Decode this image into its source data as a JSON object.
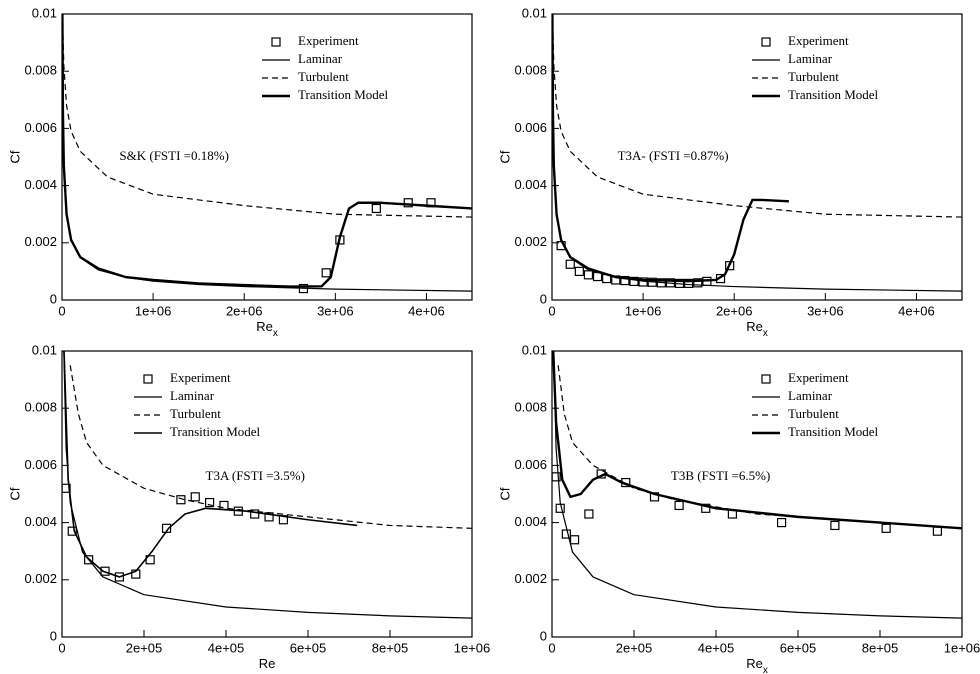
{
  "chart_data": [
    {
      "type": "line",
      "annotation": "S&K (FSTI =0.18%)",
      "xlabel": "Re",
      "xlabel_sub": "x",
      "ylabel": "Cf",
      "xlim": [
        0,
        4500000
      ],
      "ylim": [
        0,
        0.01
      ],
      "xticks": [
        0,
        {
          "value": 1000000,
          "label": "1e+06"
        },
        {
          "value": 2000000,
          "label": "2e+06"
        },
        {
          "value": 3000000,
          "label": "3e+06"
        },
        {
          "value": 4000000,
          "label": "4e+06"
        }
      ],
      "yticks": [
        0,
        0.002,
        0.004,
        0.006,
        0.008,
        0.01
      ],
      "legend": "upper right",
      "series": [
        {
          "name": "Experiment",
          "color": "#000000",
          "marker": "square",
          "x": [
            2650000,
            2900000,
            3050000,
            3450000,
            3800000,
            4050000
          ],
          "values": [
            0.0004,
            0.00095,
            0.0021,
            0.0032,
            0.0034,
            0.0034
          ]
        },
        {
          "name": "Laminar",
          "color": "#000000",
          "linewidth": 1.2,
          "x": [
            4400,
            10000,
            20000,
            50000,
            100000,
            200000,
            400000,
            700000,
            1000000,
            1500000,
            2000000,
            3000000,
            4500000
          ],
          "values": [
            0.01,
            0.0066,
            0.0047,
            0.00297,
            0.0021,
            0.00148,
            0.00105,
            0.00079,
            0.00066,
            0.00054,
            0.00047,
            0.00038,
            0.00031
          ]
        },
        {
          "name": "Turbulent",
          "color": "#000000",
          "linewidth": 1.2,
          "dash": true,
          "x": [
            3000,
            10000,
            20000,
            50000,
            100000,
            200000,
            500000,
            1000000,
            2000000,
            3000000,
            4500000
          ],
          "values": [
            0.01,
            0.0094,
            0.0082,
            0.0068,
            0.0059,
            0.0052,
            0.0043,
            0.0037,
            0.0033,
            0.003,
            0.0029
          ]
        },
        {
          "name": "Transition Model",
          "color": "#000000",
          "linewidth": 2.4,
          "x": [
            4400,
            10000,
            20000,
            50000,
            100000,
            200000,
            400000,
            700000,
            1000000,
            1500000,
            2000000,
            2500000,
            2850000,
            2950000,
            3050000,
            3150000,
            3250000,
            3500000,
            4000000,
            4500000
          ],
          "values": [
            0.01,
            0.0066,
            0.0047,
            0.003,
            0.0021,
            0.0015,
            0.0011,
            0.0008,
            0.0007,
            0.00058,
            0.00052,
            0.00047,
            0.00048,
            0.0008,
            0.0022,
            0.0032,
            0.0034,
            0.0034,
            0.0033,
            0.0032
          ]
        }
      ]
    },
    {
      "type": "line",
      "annotation": "T3A- (FSTI =0.87%)",
      "xlabel": "Re",
      "xlabel_sub": "x",
      "ylabel": "Cf",
      "xlim": [
        0,
        4500000
      ],
      "ylim": [
        0,
        0.01
      ],
      "xticks": [
        0,
        {
          "value": 1000000,
          "label": "1e+06"
        },
        {
          "value": 2000000,
          "label": "2e+06"
        },
        {
          "value": 3000000,
          "label": "3e+06"
        },
        {
          "value": 4000000,
          "label": "4e+06"
        }
      ],
      "yticks": [
        0,
        0.002,
        0.004,
        0.006,
        0.008,
        0.01
      ],
      "legend": "upper right",
      "series": [
        {
          "name": "Experiment",
          "color": "#000000",
          "marker": "square",
          "x": [
            100000,
            200000,
            300000,
            400000,
            500000,
            600000,
            700000,
            800000,
            900000,
            1000000,
            1100000,
            1200000,
            1300000,
            1400000,
            1500000,
            1600000,
            1700000,
            1850000,
            1950000
          ],
          "values": [
            0.0019,
            0.00125,
            0.001,
            0.00088,
            0.00082,
            0.00075,
            0.0007,
            0.00068,
            0.00065,
            0.00063,
            0.00062,
            0.0006,
            0.0006,
            0.00058,
            0.00058,
            0.0006,
            0.00065,
            0.00075,
            0.0012
          ]
        },
        {
          "name": "Laminar",
          "color": "#000000",
          "linewidth": 1.2,
          "x": [
            4400,
            10000,
            20000,
            50000,
            100000,
            200000,
            400000,
            700000,
            1000000,
            1500000,
            2000000,
            3000000,
            4500000
          ],
          "values": [
            0.01,
            0.0066,
            0.0047,
            0.00297,
            0.0021,
            0.00148,
            0.00105,
            0.00079,
            0.00066,
            0.00054,
            0.00047,
            0.00038,
            0.00031
          ]
        },
        {
          "name": "Turbulent",
          "color": "#000000",
          "linewidth": 1.2,
          "dash": true,
          "x": [
            3000,
            10000,
            20000,
            50000,
            100000,
            200000,
            500000,
            1000000,
            2000000,
            3000000,
            4500000
          ],
          "values": [
            0.01,
            0.0094,
            0.0082,
            0.0068,
            0.0059,
            0.0052,
            0.0043,
            0.0037,
            0.0033,
            0.003,
            0.0029
          ]
        },
        {
          "name": "Transition Model",
          "color": "#000000",
          "linewidth": 2.4,
          "x": [
            4400,
            10000,
            20000,
            50000,
            100000,
            200000,
            400000,
            700000,
            1000000,
            1500000,
            1800000,
            1900000,
            2000000,
            2100000,
            2200000,
            2300000,
            2600000
          ],
          "values": [
            0.01,
            0.0066,
            0.0047,
            0.003,
            0.0021,
            0.0015,
            0.0011,
            0.0008,
            0.0007,
            0.00066,
            0.0007,
            0.0009,
            0.0016,
            0.0028,
            0.0035,
            0.0035,
            0.00345
          ]
        }
      ]
    },
    {
      "type": "line",
      "annotation": "T3A (FSTI =3.5%)",
      "xlabel": "Re",
      "ylabel": "Cf",
      "xlim": [
        0,
        1000000
      ],
      "ylim": [
        0,
        0.01
      ],
      "xticks": [
        0,
        {
          "value": 200000,
          "label": "2e+05"
        },
        {
          "value": 400000,
          "label": "4e+05"
        },
        {
          "value": 600000,
          "label": "6e+05"
        },
        {
          "value": 800000,
          "label": "8e+05"
        },
        {
          "value": 1000000,
          "label": "1e+06"
        }
      ],
      "yticks": [
        0,
        0.002,
        0.004,
        0.006,
        0.008,
        0.01
      ],
      "legend": "upper center",
      "series": [
        {
          "name": "Experiment",
          "color": "#000000",
          "marker": "square",
          "x": [
            10000,
            25000,
            65000,
            105000,
            140000,
            180000,
            215000,
            255000,
            290000,
            325000,
            360000,
            395000,
            430000,
            470000,
            505000,
            540000
          ],
          "values": [
            0.0052,
            0.0037,
            0.0027,
            0.0023,
            0.0021,
            0.0022,
            0.0027,
            0.0038,
            0.0048,
            0.0049,
            0.0047,
            0.0046,
            0.0044,
            0.0043,
            0.0042,
            0.0041
          ]
        },
        {
          "name": "Laminar",
          "color": "#000000",
          "linewidth": 1.2,
          "x": [
            4400,
            10000,
            20000,
            50000,
            100000,
            200000,
            400000,
            600000,
            800000,
            1000000
          ],
          "values": [
            0.01,
            0.0066,
            0.0047,
            0.00297,
            0.0021,
            0.00148,
            0.00105,
            0.00086,
            0.00074,
            0.00066
          ]
        },
        {
          "name": "Turbulent",
          "color": "#000000",
          "linewidth": 1.2,
          "dash": true,
          "x": [
            20000,
            40000,
            60000,
            100000,
            200000,
            300000,
            400000,
            600000,
            800000,
            1000000
          ],
          "values": [
            0.0095,
            0.0078,
            0.0068,
            0.006,
            0.0052,
            0.0048,
            0.0045,
            0.0042,
            0.0039,
            0.0038
          ]
        },
        {
          "name": "Transition Model",
          "color": "#000000",
          "linewidth": 1.6,
          "x": [
            5000,
            15000,
            30000,
            60000,
            100000,
            140000,
            180000,
            220000,
            260000,
            300000,
            350000,
            450000,
            600000,
            720000
          ],
          "values": [
            0.01,
            0.0055,
            0.0037,
            0.0028,
            0.0023,
            0.0021,
            0.0023,
            0.003,
            0.0038,
            0.0043,
            0.0045,
            0.0044,
            0.0041,
            0.0039
          ]
        }
      ]
    },
    {
      "type": "line",
      "annotation": "T3B (FSTI =6.5%)",
      "xlabel": "Re",
      "xlabel_sub": "x",
      "ylabel": "Cf",
      "xlim": [
        0,
        1000000
      ],
      "ylim": [
        0,
        0.01
      ],
      "xticks": [
        0,
        {
          "value": 200000,
          "label": "2e+05"
        },
        {
          "value": 400000,
          "label": "4e+05"
        },
        {
          "value": 600000,
          "label": "6e+05"
        },
        {
          "value": 800000,
          "label": "8e+05"
        },
        {
          "value": 1000000,
          "label": "1e+06"
        }
      ],
      "yticks": [
        0,
        0.002,
        0.004,
        0.006,
        0.008,
        0.01
      ],
      "legend": "upper right",
      "series": [
        {
          "name": "Experiment",
          "color": "#000000",
          "marker": "square",
          "x": [
            10000,
            20000,
            35000,
            55000,
            90000,
            120000,
            180000,
            250000,
            310000,
            375000,
            440000,
            560000,
            690000,
            815000,
            940000
          ],
          "values": [
            0.0056,
            0.0045,
            0.0036,
            0.0034,
            0.0043,
            0.0057,
            0.0054,
            0.0049,
            0.0046,
            0.0045,
            0.0043,
            0.004,
            0.0039,
            0.0038,
            0.0037
          ]
        },
        {
          "name": "Laminar",
          "color": "#000000",
          "linewidth": 1.2,
          "x": [
            4400,
            10000,
            20000,
            50000,
            100000,
            200000,
            400000,
            600000,
            800000,
            1000000
          ],
          "values": [
            0.01,
            0.0066,
            0.0047,
            0.00297,
            0.0021,
            0.00148,
            0.00105,
            0.00086,
            0.00074,
            0.00066
          ]
        },
        {
          "name": "Turbulent",
          "color": "#000000",
          "linewidth": 1.2,
          "dash": true,
          "x": [
            15000,
            30000,
            50000,
            100000,
            200000,
            300000,
            500000,
            700000,
            1000000
          ],
          "values": [
            0.0095,
            0.0078,
            0.0068,
            0.006,
            0.0052,
            0.0048,
            0.0043,
            0.0041,
            0.0038
          ]
        },
        {
          "name": "Transition Model",
          "color": "#000000",
          "linewidth": 2.4,
          "x": [
            3000,
            10000,
            25000,
            45000,
            70000,
            100000,
            130000,
            170000,
            250000,
            400000,
            600000,
            800000,
            1000000
          ],
          "values": [
            0.01,
            0.0075,
            0.0055,
            0.0049,
            0.005,
            0.0055,
            0.0057,
            0.0054,
            0.005,
            0.0045,
            0.0042,
            0.004,
            0.0038
          ]
        }
      ]
    }
  ]
}
